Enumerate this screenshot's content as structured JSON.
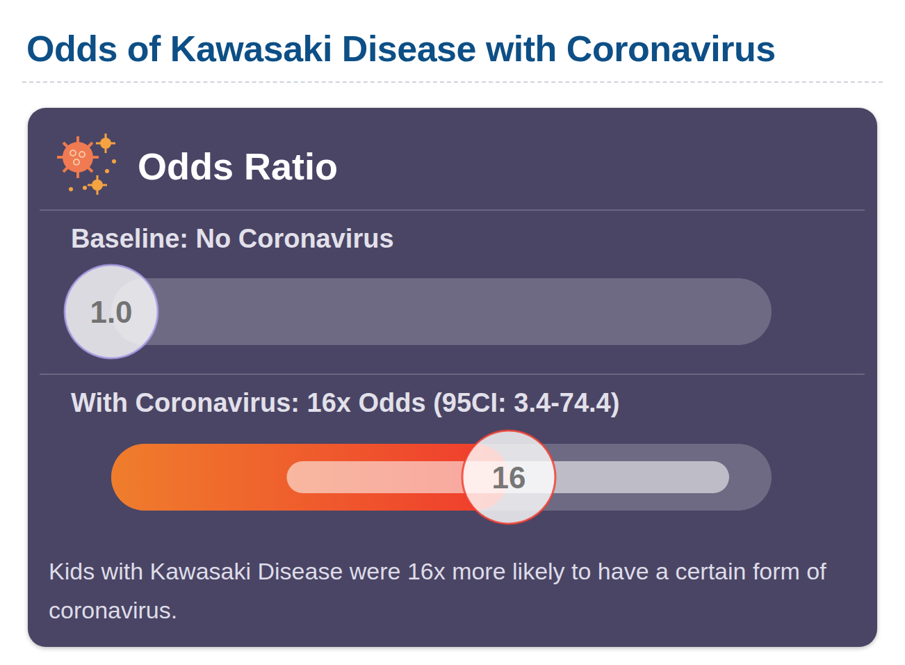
{
  "title": "Odds of Kawasaki Disease with Coronavirus",
  "chart_data": {
    "type": "bar",
    "title": "Odds Ratio",
    "orientation": "horizontal",
    "categories": [
      "Baseline: No Coronavirus",
      "With Coronavirus: 16x Odds (95CI: 3.4-74.4)"
    ],
    "values": [
      1.0,
      16
    ],
    "value_labels": [
      "1.0",
      "16"
    ],
    "ci_low": [
      null,
      3.4
    ],
    "ci_high": [
      null,
      74.4
    ],
    "colors": [
      "#a99be6",
      "#ef3b2d"
    ],
    "xlim": [
      1,
      100
    ],
    "log": "x",
    "grid": false,
    "tick_labels": false,
    "data_labels": true,
    "annotation": "Kids with Kawasaki Disease were 16x more likely to have a certain form of coronavirus."
  }
}
